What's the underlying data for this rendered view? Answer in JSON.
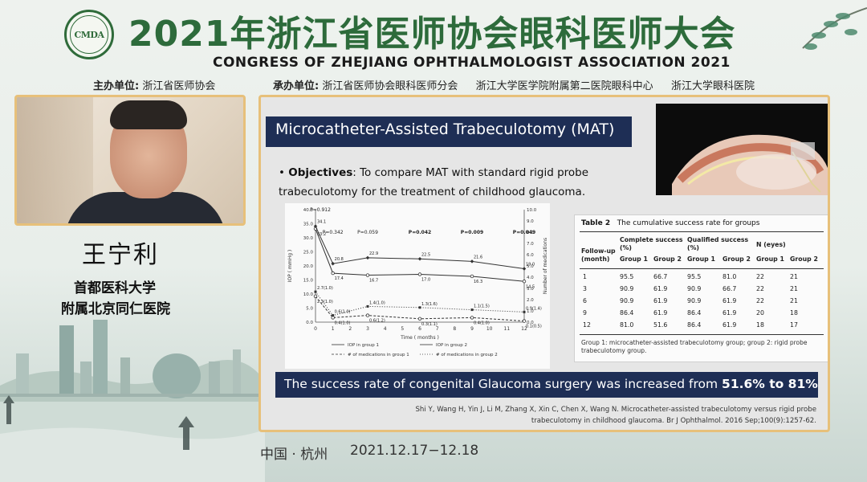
{
  "header": {
    "logo_text": "CMDA",
    "title_cn": "2021年浙江省医师协会眼科医师大会",
    "title_en": "CONGRESS OF ZHEJIANG OPHTHALMOLOGIST ASSOCIATION 2021",
    "organizer_label": "主办单位:",
    "organizer": "浙江省医师协会",
    "co_organizer_label": "承办单位:",
    "co_organizers": [
      "浙江省医师协会眼科医师分会",
      "浙江大学医学院附属第二医院眼科中心",
      "浙江大学眼科医院"
    ]
  },
  "speaker": {
    "name": "王宁利",
    "affiliation_line1": "首都医科大学",
    "affiliation_line2": "附属北京同仁医院"
  },
  "slide": {
    "title": "Microcatheter-Assisted Trabeculotomy (MAT)",
    "objectives_label": "Objectives",
    "objectives_text": ":  To compare MAT with standard rigid probe trabeculotomy for the treatment of childhood glaucoma.",
    "success_text": "The success rate of congenital Glaucoma surgery was increased from ",
    "success_highlight": "51.6% to 81%",
    "citation_line1": "Shi Y, Wang H, Yin J, Li M, Zhang X, Xin C, Chen X, Wang N. Microcatheter-assisted trabeculotomy versus rigid probe",
    "citation_line2": "trabeculotomy in childhood glaucoma. Br J Ophthalmol. 2016 Sep;100(9):1257-62.",
    "table": {
      "title_bold": "Table 2",
      "title": "The cumulative success rate for groups",
      "col_complete": "Complete success (%)",
      "col_qualified": "Qualified success (%)",
      "col_n": "N (eyes)",
      "row_header": "Follow-up (month)",
      "group1": "Group 1",
      "group2": "Group 2",
      "rows": [
        [
          "1",
          "95.5",
          "66.7",
          "95.5",
          "81.0",
          "22",
          "21"
        ],
        [
          "3",
          "90.9",
          "61.9",
          "90.9",
          "66.7",
          "22",
          "21"
        ],
        [
          "6",
          "90.9",
          "61.9",
          "90.9",
          "61.9",
          "22",
          "21"
        ],
        [
          "9",
          "86.4",
          "61.9",
          "86.4",
          "61.9",
          "20",
          "18"
        ],
        [
          "12",
          "81.0",
          "51.6",
          "86.4",
          "61.9",
          "18",
          "17"
        ]
      ],
      "footnote": "Group 1: microcatheter-assisted trabeculotomy group; group 2: rigid probe trabeculotomy group."
    }
  },
  "footer": {
    "location": "中国 · 杭州",
    "dates": "2021.12.17−12.18"
  },
  "chart_data": {
    "type": "line",
    "xlabel": "Time ( months )",
    "ylabel": "IOP ( mmHg )",
    "y2label": "Number of medications",
    "x": [
      0,
      1,
      3,
      6,
      9,
      12
    ],
    "xticks": [
      "0",
      "1",
      "2",
      "3",
      "4",
      "5",
      "6",
      "7",
      "8",
      "9",
      "10",
      "11",
      "12"
    ],
    "ylim": [
      0,
      40
    ],
    "yticks": [
      "0.0",
      "5.0",
      "10.0",
      "15.0",
      "20.0",
      "25.0",
      "30.0",
      "35.0",
      "40.0"
    ],
    "y2lim": [
      0,
      10
    ],
    "y2ticks": [
      "0.0",
      "1.0",
      "2.0",
      "3.0",
      "4.0",
      "5.0",
      "6.0",
      "7.0",
      "8.0",
      "9.0",
      "10.0"
    ],
    "pvalues": [
      {
        "x": 0,
        "label": "P=0.912"
      },
      {
        "x": 1,
        "label": "P=0.342"
      },
      {
        "x": 3,
        "label": "P=0.059"
      },
      {
        "x": 6,
        "label": "P=0.042"
      },
      {
        "x": 9,
        "label": "P=0.009"
      },
      {
        "x": 12,
        "label": "P=0.049"
      }
    ],
    "series": [
      {
        "name": "IOP in group 1",
        "axis": "left",
        "values": [
          33.2,
          17.4,
          16.7,
          17.0,
          16.3,
          14.5
        ],
        "labels": [
          "33.2",
          "17.4",
          "16.7",
          "17.0",
          "16.3",
          "14.5"
        ]
      },
      {
        "name": "IOP in group 2",
        "axis": "left",
        "values": [
          34.1,
          20.8,
          22.9,
          22.5,
          21.6,
          19.0
        ],
        "labels": [
          "34.1",
          "20.8",
          "22.9",
          "22.5",
          "21.6",
          "19.0"
        ]
      },
      {
        "name": "# of medications in group 1",
        "axis": "right",
        "values": [
          2.3,
          0.4,
          0.6,
          0.3,
          0.4,
          0.1
        ],
        "labels": [
          "2.3(1.0)",
          "0.4(1.0)",
          "0.6(1.2)",
          "0.3(1.1)",
          "0.4(1.0)",
          "0.1(0.5)"
        ]
      },
      {
        "name": "# of medications in group 2",
        "axis": "right",
        "values": [
          2.7,
          0.6,
          1.4,
          1.3,
          1.1,
          0.9
        ],
        "labels": [
          "2.7(1.0)",
          "0.6(1.0)",
          "1.4(1.0)",
          "1.3(1.6)",
          "1.1(1.5)",
          "0.9(1.4)"
        ]
      }
    ]
  }
}
